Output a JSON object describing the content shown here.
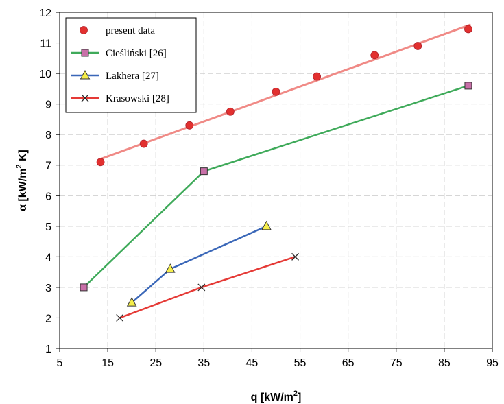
{
  "chart_data": {
    "type": "scatter",
    "xlabel": "q [kW/m²]",
    "xlabel_parts": {
      "main": "q [kW/m",
      "sup": "2",
      "end": "]"
    },
    "ylabel": "α [kW/m² K]",
    "ylabel_parts": {
      "main": "α [kW/m",
      "sup": "2",
      "end": " K]"
    },
    "xlim": [
      5,
      95
    ],
    "ylim": [
      1,
      12
    ],
    "x_ticks": [
      "5",
      "15",
      "25",
      "35",
      "45",
      "55",
      "65",
      "75",
      "85",
      "95"
    ],
    "y_ticks": [
      "1",
      "2",
      "3",
      "4",
      "5",
      "6",
      "7",
      "8",
      "9",
      "10",
      "11",
      "12"
    ],
    "grid": true,
    "legend_position": "top-left",
    "series": [
      {
        "name": "present data",
        "marker": "circle",
        "color": "#e2302f",
        "fit_line_color": "#f08a86",
        "fit_line": {
          "x": [
            13.5,
            90.5
          ],
          "y": [
            7.2,
            11.6
          ]
        },
        "points": [
          {
            "x": 13.5,
            "y": 7.1
          },
          {
            "x": 22.5,
            "y": 7.7
          },
          {
            "x": 32.0,
            "y": 8.3
          },
          {
            "x": 40.5,
            "y": 8.75
          },
          {
            "x": 50.0,
            "y": 9.4
          },
          {
            "x": 58.5,
            "y": 9.9
          },
          {
            "x": 70.5,
            "y": 10.6
          },
          {
            "x": 79.5,
            "y": 10.9
          },
          {
            "x": 90.0,
            "y": 11.45
          }
        ]
      },
      {
        "name": "Cieśliński [26]",
        "marker": "square",
        "color": "#3faa5a",
        "marker_color": "#c870a8",
        "points": [
          {
            "x": 10,
            "y": 3.0
          },
          {
            "x": 35,
            "y": 6.8
          },
          {
            "x": 90,
            "y": 9.6
          }
        ]
      },
      {
        "name": "Lakhera [27]",
        "marker": "triangle",
        "color": "#3a67b8",
        "marker_color": "#f5ee4a",
        "points": [
          {
            "x": 20,
            "y": 2.5
          },
          {
            "x": 28,
            "y": 3.6
          },
          {
            "x": 48,
            "y": 5.0
          }
        ]
      },
      {
        "name": "Krasowski [28]",
        "marker": "x",
        "color": "#e53a36",
        "marker_color": "#2b2b2b",
        "points": [
          {
            "x": 17.5,
            "y": 2.0
          },
          {
            "x": 34.5,
            "y": 3.0
          },
          {
            "x": 54,
            "y": 4.0
          }
        ]
      }
    ]
  }
}
